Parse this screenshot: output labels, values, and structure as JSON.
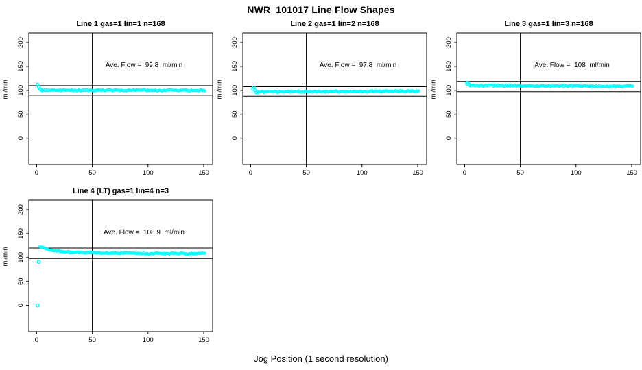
{
  "page": {
    "title": "NWR_101017  Line Flow Shapes",
    "xlabel": "Jog Position (1 second resolution)"
  },
  "style": {
    "point_color": "#00FFFF",
    "axis_color": "#000000",
    "background": "#FFFFFF"
  },
  "axes": {
    "ylabel": "ml/min",
    "x_range": [
      -7,
      158
    ],
    "x_ticks": [
      0,
      50,
      100,
      150
    ],
    "y_range": [
      -55,
      220
    ],
    "y_ticks": [
      0,
      50,
      100,
      150,
      200
    ],
    "vline_x": 50
  },
  "chart_data": [
    {
      "type": "scatter",
      "title": "Line 1 gas=1 lin=1 n=168",
      "n": 168,
      "ave_flow": 99.8,
      "annotation": "Ave. Flow =  99.8  ml/min",
      "ref_lines": [
        109.8,
        89.8
      ],
      "transient_points": [
        [
          1,
          112
        ],
        [
          2,
          107
        ],
        [
          3,
          103
        ],
        [
          4,
          101
        ]
      ],
      "outlier_points": [],
      "band": {
        "path": [
          [
            5,
            100.5
          ],
          [
            151,
            100
          ]
        ],
        "step": 1,
        "jitter": 1.4
      }
    },
    {
      "type": "scatter",
      "title": "Line 2 gas=1 lin=2 n=168",
      "n": 168,
      "ave_flow": 97.8,
      "annotation": "Ave. Flow =  97.8  ml/min",
      "ref_lines": [
        107.6,
        88.0
      ],
      "transient_points": [
        [
          2,
          103
        ],
        [
          3,
          106
        ],
        [
          4,
          100
        ],
        [
          5,
          96
        ]
      ],
      "outlier_points": [],
      "band": {
        "path": [
          [
            6,
            97
          ],
          [
            151,
            98
          ]
        ],
        "step": 1,
        "jitter": 1.4
      }
    },
    {
      "type": "scatter",
      "title": "Line 3 gas=1 lin=3 n=168",
      "n": 168,
      "ave_flow": 108,
      "annotation": "Ave. Flow =  108  ml/min",
      "ref_lines": [
        118.8,
        97.2
      ],
      "transient_points": [
        [
          2,
          114
        ],
        [
          3,
          116
        ],
        [
          4,
          112
        ]
      ],
      "outlier_points": [],
      "band": {
        "path": [
          [
            5,
            110
          ],
          [
            151,
            108.5
          ]
        ],
        "step": 1,
        "jitter": 1.4
      }
    },
    {
      "type": "scatter",
      "title": "Line 4 (LT) gas=1 lin=4 n=3",
      "n": 3,
      "ave_flow": 108.9,
      "annotation": "Ave. Flow =  108.9  ml/min",
      "ref_lines": [
        119.8,
        98.0
      ],
      "transient_points": [],
      "outlier_points": [
        [
          1,
          0
        ],
        [
          2,
          91
        ]
      ],
      "band": {
        "path": [
          [
            3,
            123
          ],
          [
            8,
            118
          ],
          [
            15,
            114
          ],
          [
            30,
            111
          ],
          [
            60,
            109.5
          ],
          [
            100,
            108.5
          ],
          [
            151,
            108
          ]
        ],
        "step": 1,
        "jitter": 1.4
      }
    }
  ]
}
